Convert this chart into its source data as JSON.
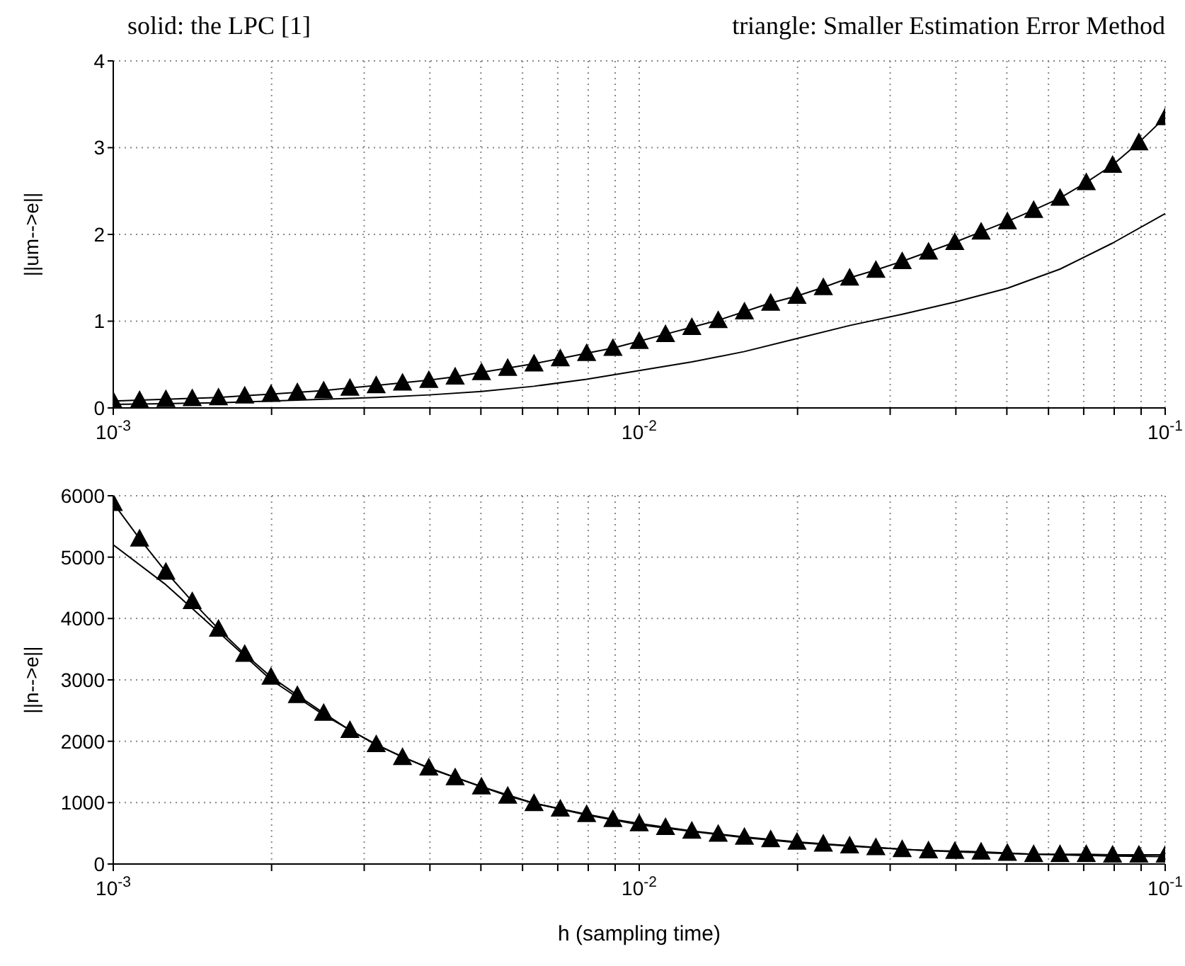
{
  "chart_data": [
    {
      "type": "line",
      "ylabel": "||um-->e||",
      "annotations": [
        "solid: the LPC [1]",
        "triangle: Smaller Estimation Error Method"
      ],
      "log": "x",
      "grid": true,
      "line_style": "solid",
      "xlim": [
        0.001,
        0.1
      ],
      "ylim": [
        0,
        4
      ],
      "yticks": [
        0,
        1,
        2,
        3,
        4
      ],
      "xticks": [
        {
          "value": 0.001,
          "label": "10$^{-3}$"
        },
        {
          "value": 0.002,
          "label": null
        },
        {
          "value": 0.003,
          "label": null
        },
        {
          "value": 0.004,
          "label": null
        },
        {
          "value": 0.005,
          "label": null
        },
        {
          "value": 0.006,
          "label": null
        },
        {
          "value": 0.007,
          "label": null
        },
        {
          "value": 0.008,
          "label": null
        },
        {
          "value": 0.009,
          "label": null
        },
        {
          "value": 0.01,
          "label": "10$^{-2}$"
        },
        {
          "value": 0.02,
          "label": null
        },
        {
          "value": 0.03,
          "label": null
        },
        {
          "value": 0.04,
          "label": null
        },
        {
          "value": 0.05,
          "label": null
        },
        {
          "value": 0.06,
          "label": null
        },
        {
          "value": 0.07,
          "label": null
        },
        {
          "value": 0.08,
          "label": null
        },
        {
          "value": 0.09,
          "label": null
        },
        {
          "value": 0.1,
          "label": "10$^{-1}$"
        }
      ],
      "series": [
        {
          "color": "#000000",
          "marker": "none",
          "x": [
            0.001,
            0.001259,
            0.001585,
            0.001995,
            0.002512,
            0.003162,
            0.003981,
            0.005012,
            0.00631,
            0.007943,
            0.01,
            0.01259,
            0.01585,
            0.01995,
            0.02512,
            0.03162,
            0.03981,
            0.05012,
            0.0631,
            0.07943,
            0.1
          ],
          "values": [
            0.04,
            0.05,
            0.06,
            0.08,
            0.1,
            0.12,
            0.15,
            0.19,
            0.25,
            0.33,
            0.43,
            0.53,
            0.65,
            0.8,
            0.95,
            1.08,
            1.22,
            1.38,
            1.6,
            1.9,
            2.24
          ]
        },
        {
          "color": "#000000",
          "marker": "triangle",
          "x": [
            0.001,
            0.001122,
            0.001259,
            0.001413,
            0.001585,
            0.001778,
            0.001995,
            0.002239,
            0.002512,
            0.002818,
            0.003162,
            0.003548,
            0.003981,
            0.004467,
            0.005012,
            0.005623,
            0.00631,
            0.007079,
            0.007943,
            0.008913,
            0.01,
            0.01122,
            0.01259,
            0.01413,
            0.01585,
            0.01778,
            0.01995,
            0.02239,
            0.02512,
            0.02818,
            0.03162,
            0.03548,
            0.03981,
            0.04467,
            0.05012,
            0.05623,
            0.0631,
            0.07079,
            0.07943,
            0.08913,
            0.1
          ],
          "values": [
            0.08,
            0.09,
            0.1,
            0.11,
            0.12,
            0.14,
            0.16,
            0.18,
            0.2,
            0.23,
            0.26,
            0.29,
            0.32,
            0.36,
            0.41,
            0.46,
            0.51,
            0.57,
            0.63,
            0.69,
            0.77,
            0.85,
            0.93,
            1.01,
            1.11,
            1.21,
            1.29,
            1.39,
            1.5,
            1.59,
            1.69,
            1.8,
            1.91,
            2.03,
            2.15,
            2.28,
            2.42,
            2.6,
            2.8,
            3.06,
            3.35
          ]
        }
      ]
    },
    {
      "type": "line",
      "xlabel": "h (sampling time)",
      "ylabel": "||n-->e||",
      "log": "x",
      "grid": true,
      "line_style": "solid",
      "xlim": [
        0.001,
        0.1
      ],
      "ylim": [
        0,
        6000
      ],
      "yticks": [
        0,
        1000,
        2000,
        3000,
        4000,
        5000,
        6000
      ],
      "xticks": [
        {
          "value": 0.001,
          "label": "10$^{-3}$"
        },
        {
          "value": 0.002,
          "label": null
        },
        {
          "value": 0.003,
          "label": null
        },
        {
          "value": 0.004,
          "label": null
        },
        {
          "value": 0.005,
          "label": null
        },
        {
          "value": 0.006,
          "label": null
        },
        {
          "value": 0.007,
          "label": null
        },
        {
          "value": 0.008,
          "label": null
        },
        {
          "value": 0.009,
          "label": null
        },
        {
          "value": 0.01,
          "label": "10$^{-2}$"
        },
        {
          "value": 0.02,
          "label": null
        },
        {
          "value": 0.03,
          "label": null
        },
        {
          "value": 0.04,
          "label": null
        },
        {
          "value": 0.05,
          "label": null
        },
        {
          "value": 0.06,
          "label": null
        },
        {
          "value": 0.07,
          "label": null
        },
        {
          "value": 0.08,
          "label": null
        },
        {
          "value": 0.09,
          "label": null
        },
        {
          "value": 0.1,
          "label": "10$^{-1}$"
        }
      ],
      "series": [
        {
          "color": "#000000",
          "marker": "none",
          "x": [
            0.001,
            0.001259,
            0.001585,
            0.001995,
            0.002512,
            0.003162,
            0.003981,
            0.005012,
            0.00631,
            0.007943,
            0.01,
            0.01259,
            0.01585,
            0.01995,
            0.02512,
            0.03162,
            0.03981,
            0.05012,
            0.0631,
            0.07943,
            0.1
          ],
          "values": [
            5200,
            4550,
            3780,
            3000,
            2430,
            1940,
            1560,
            1260,
            990,
            800,
            640,
            530,
            430,
            350,
            290,
            240,
            200,
            170,
            150,
            130,
            120
          ]
        },
        {
          "color": "#000000",
          "marker": "triangle",
          "x": [
            0.001,
            0.001122,
            0.001259,
            0.001413,
            0.001585,
            0.001778,
            0.001995,
            0.002239,
            0.002512,
            0.002818,
            0.003162,
            0.003548,
            0.003981,
            0.004467,
            0.005012,
            0.005623,
            0.00631,
            0.007079,
            0.007943,
            0.008913,
            0.01,
            0.01122,
            0.01259,
            0.01413,
            0.01585,
            0.01778,
            0.01995,
            0.02239,
            0.02512,
            0.02818,
            0.03162,
            0.03548,
            0.03981,
            0.04467,
            0.05012,
            0.05623,
            0.0631,
            0.07079,
            0.07943,
            0.08913,
            0.1
          ],
          "values": [
            5880,
            5300,
            4760,
            4280,
            3830,
            3420,
            3050,
            2750,
            2460,
            2180,
            1950,
            1740,
            1570,
            1410,
            1260,
            1110,
            990,
            900,
            810,
            730,
            660,
            600,
            540,
            490,
            440,
            400,
            360,
            330,
            300,
            270,
            240,
            220,
            210,
            200,
            180,
            160,
            160,
            160,
            150,
            150,
            150
          ]
        }
      ]
    }
  ]
}
